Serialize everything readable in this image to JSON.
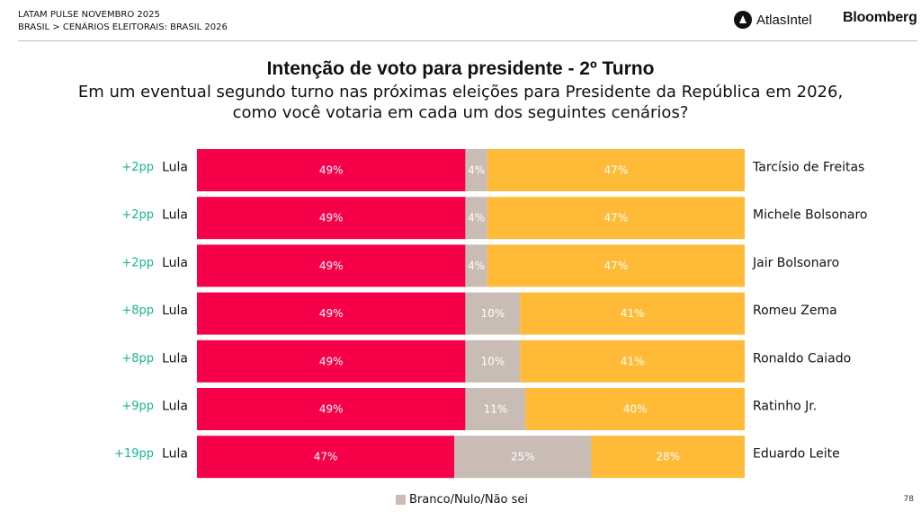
{
  "header": {
    "line1": "LATAM PULSE NOVEMBRO 2025",
    "line2": "BRASIL > CENÁRIOS ELEITORAIS: BRASIL 2026",
    "atlas_brand": "AtlasIntel",
    "bloomberg_brand": "Bloomberg"
  },
  "page_number": "78",
  "legend": {
    "label": "Branco/Nulo/Não sei"
  },
  "colors": {
    "lula": "#f7004a",
    "blank": "#c9bcb5",
    "opponent": "#ffbb38",
    "margin_text": "#1ab394"
  },
  "chart_data": {
    "type": "bar",
    "stacked": true,
    "orientation": "horizontal",
    "title": "Intenção de voto para presidente - 2º Turno",
    "subtitle_lines": [
      "Em um eventual segundo turno nas próximas eleições para Presidente da República em 2026,",
      "como você votaria em cada um dos seguintes cenários?"
    ],
    "xlim": [
      0,
      100
    ],
    "legend_placement": "bottom",
    "rows": [
      {
        "margin": "+2pp",
        "left_name": "Lula",
        "right_name": "Tarcísio de Freitas",
        "lula": 49,
        "blank": 4,
        "opponent": 47,
        "lula_label": "49%",
        "blank_label": "4%",
        "opponent_label": "47%"
      },
      {
        "margin": "+2pp",
        "left_name": "Lula",
        "right_name": "Michele Bolsonaro",
        "lula": 49,
        "blank": 4,
        "opponent": 47,
        "lula_label": "49%",
        "blank_label": "4%",
        "opponent_label": "47%"
      },
      {
        "margin": "+2pp",
        "left_name": "Lula",
        "right_name": "Jair Bolsonaro",
        "lula": 49,
        "blank": 4,
        "opponent": 47,
        "lula_label": "49%",
        "blank_label": "4%",
        "opponent_label": "47%"
      },
      {
        "margin": "+8pp",
        "left_name": "Lula",
        "right_name": "Romeu Zema",
        "lula": 49,
        "blank": 10,
        "opponent": 41,
        "lula_label": "49%",
        "blank_label": "10%",
        "opponent_label": "41%"
      },
      {
        "margin": "+8pp",
        "left_name": "Lula",
        "right_name": "Ronaldo Caiado",
        "lula": 49,
        "blank": 10,
        "opponent": 41,
        "lula_label": "49%",
        "blank_label": "10%",
        "opponent_label": "41%"
      },
      {
        "margin": "+9pp",
        "left_name": "Lula",
        "right_name": "Ratinho Jr.",
        "lula": 49,
        "blank": 11,
        "opponent": 40,
        "lula_label": "49%",
        "blank_label": "11%",
        "opponent_label": "40%"
      },
      {
        "margin": "+19pp",
        "left_name": "Lula",
        "right_name": "Eduardo Leite",
        "lula": 47,
        "blank": 25,
        "opponent": 28,
        "lula_label": "47%",
        "blank_label": "25%",
        "opponent_label": "28%"
      }
    ]
  }
}
